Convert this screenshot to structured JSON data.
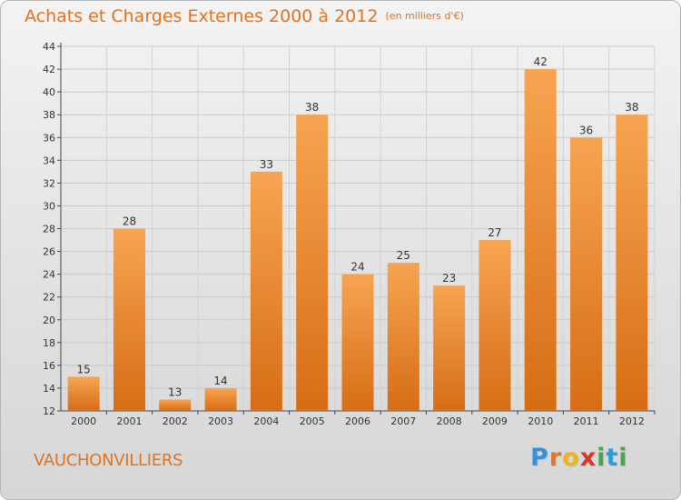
{
  "header": {
    "title": "Achats et Charges Externes 2000 à 2012",
    "subtitle": "(en milliers d'€)"
  },
  "footer": {
    "place": "VAUCHONVILLIERS",
    "brand": "Proxiti",
    "brand_color": "#e0731f"
  },
  "chart_data": {
    "type": "bar",
    "title": "Achats et Charges Externes 2000 à 2012",
    "subtitle": "(en milliers d'€)",
    "categories": [
      "2000",
      "2001",
      "2002",
      "2003",
      "2004",
      "2005",
      "2006",
      "2007",
      "2008",
      "2009",
      "2010",
      "2011",
      "2012"
    ],
    "values": [
      15,
      28,
      13,
      14,
      33,
      38,
      24,
      25,
      23,
      27,
      42,
      36,
      38
    ],
    "ylim": [
      12,
      44
    ],
    "yticks": [
      12,
      14,
      16,
      18,
      20,
      22,
      24,
      26,
      28,
      30,
      32,
      34,
      36,
      38,
      40,
      42,
      44
    ],
    "xlabel": "",
    "ylabel": "",
    "grid": true,
    "bar_color": "#e8822e"
  }
}
